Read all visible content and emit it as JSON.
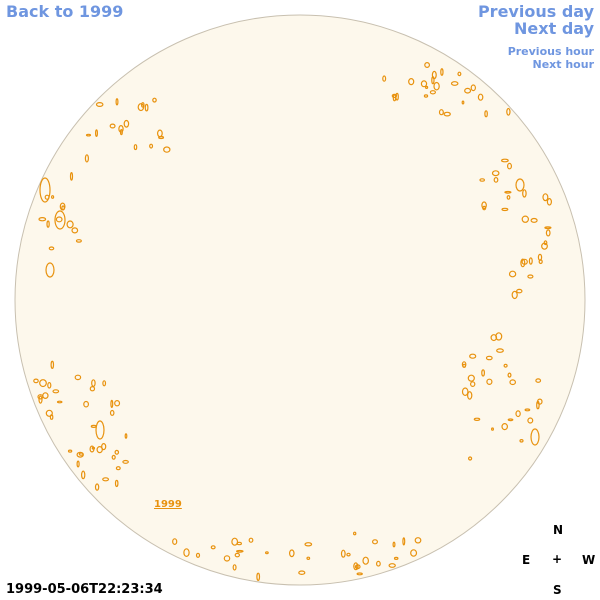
{
  "nav": {
    "back_label": "Back to 1999",
    "prev_day_label": "Previous day",
    "next_day_label": "Next day",
    "prev_hour_label": "Previous hour",
    "next_hour_label": "Next hour"
  },
  "timestamp": "1999-05-06T22:23:34",
  "region_label": "1999",
  "compass": {
    "north": "N",
    "east": "E",
    "center": "+",
    "west": "W",
    "south": "S"
  },
  "colors": {
    "disk_fill": "#fdf8ec",
    "disk_border": "#c8c0b0",
    "contour": "#e8920e",
    "link": "#6f96e0"
  }
}
